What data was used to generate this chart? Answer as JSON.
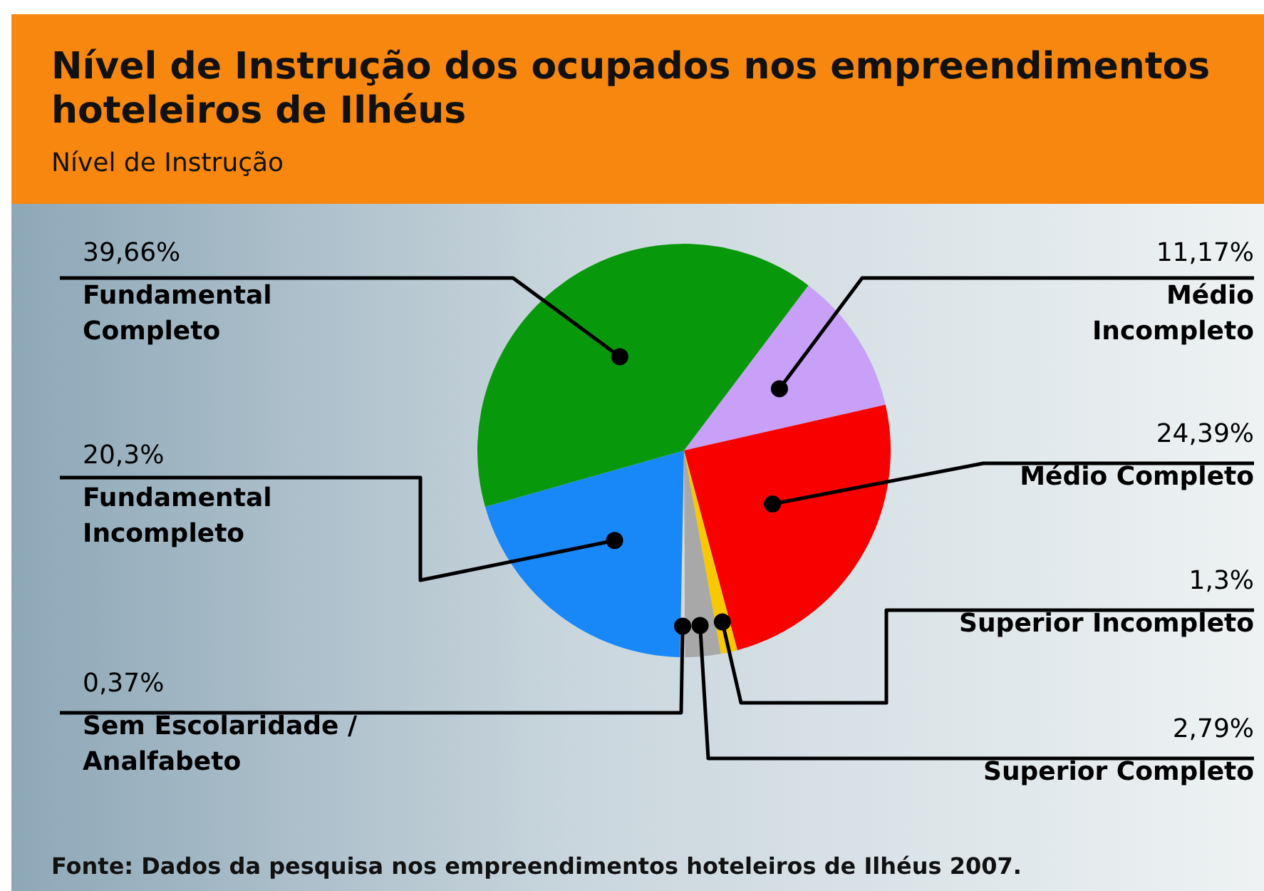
{
  "chart_data": {
    "type": "pie",
    "title": "Nível de Instrução dos ocupados nos empreendimentos hoteleiros de Ilhéus",
    "subtitle": "Nível de Instrução",
    "categories": [
      "Médio Incompleto",
      "Médio Completo",
      "Superior Incompleto",
      "Superior Completo",
      "Sem Escolaridade / Analfabeto",
      "Fundamental Incompleto",
      "Fundamental Completo"
    ],
    "values": [
      11.17,
      24.39,
      1.3,
      2.79,
      0.37,
      20.3,
      39.66
    ],
    "value_labels": [
      "11,17%",
      "24,39%",
      "1,3%",
      "2,79%",
      "0,37%",
      "20,3%",
      "39,66%"
    ],
    "colors": [
      "#c8a0f8",
      "#f80000",
      "#f8c800",
      "#a8a8a8",
      "#d8d8d8",
      "#1888f8",
      "#08980c"
    ],
    "annotations": [
      "Fonte: Dados da pesquisa nos empreendimentos hoteleiros de Ilhéus 2007."
    ]
  }
}
